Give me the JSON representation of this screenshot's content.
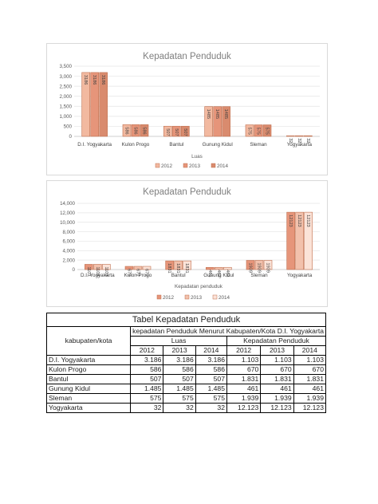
{
  "charts": [
    {
      "title": "Kepadatan Penduduk",
      "chart_data": {
        "type": "bar",
        "categories": [
          "D.I. Yogyakarta",
          "Kulon Progo",
          "Bantul",
          "Gunung Kidul",
          "Sleman",
          "Yogyakarta"
        ],
        "series": [
          {
            "name": "2012",
            "values": [
              3186,
              586,
              507,
              1485,
              575,
              32
            ],
            "labels": [
              "3186",
              "586",
              "507",
              "1485",
              "575",
              "32"
            ]
          },
          {
            "name": "2013",
            "values": [
              3186,
              586,
              507,
              1485,
              575,
              32
            ],
            "labels": [
              "3186",
              "586",
              "507",
              "1485",
              "575",
              "32"
            ]
          },
          {
            "name": "2014",
            "values": [
              3186,
              586,
              507,
              1485,
              575,
              32
            ],
            "labels": [
              "3186",
              "586",
              "507",
              "1485",
              "575",
              "32"
            ]
          }
        ],
        "yticks": [
          "0",
          "500",
          "1,000",
          "1,500",
          "2,000",
          "2,500",
          "3,000",
          "3,500"
        ],
        "ylim": [
          0,
          3500
        ],
        "xlabel": "Luas",
        "grid": true,
        "legend": "bottom",
        "colors": [
          "#f2b9a0",
          "#e6957a",
          "#d98b6e"
        ]
      }
    },
    {
      "title": "Kepadatan Penduduk",
      "chart_data": {
        "type": "bar",
        "categories": [
          "D.I. Yogyakarta",
          "Kulon Progo",
          "Bantul",
          "Gunung Kidul",
          "Sleman",
          "Yogyakarta"
        ],
        "series": [
          {
            "name": "2012",
            "values": [
              1103,
              670,
              1831,
              461,
              1939,
              12123
            ],
            "labels": [
              "1103",
              "670",
              "1831",
              "461",
              "1939",
              "12123"
            ]
          },
          {
            "name": "2013",
            "values": [
              1103,
              670,
              1831,
              461,
              1939,
              12123
            ],
            "labels": [
              "1103",
              "670",
              "1831",
              "461",
              "1939",
              "12123"
            ]
          },
          {
            "name": "2014",
            "values": [
              1103,
              670,
              1831,
              461,
              1939,
              12123
            ],
            "labels": [
              "1103",
              "670",
              "1831",
              "461",
              "1939",
              "12123"
            ]
          }
        ],
        "yticks": [
          "0",
          "2,000",
          "4,000",
          "6,000",
          "8,000",
          "10,000",
          "12,000",
          "14,000"
        ],
        "ylim": [
          0,
          14000
        ],
        "xlabel": "Kepadatan penduduk",
        "grid": true,
        "legend": "bottom",
        "colors": [
          "#e6957a",
          "#f2c1ac",
          "#fbe3d8"
        ]
      }
    }
  ],
  "table": {
    "title": "Tabel Kepadatan Penduduk",
    "row_header": "kabupaten/kota",
    "group_header": "kepadatan Penduduk Menurut Kabupaten/Kota D.I. Yogyakarta",
    "sub_headers": [
      "Luas",
      "Kepadatan Penduduk"
    ],
    "years": [
      "2012",
      "2013",
      "2014",
      "2012",
      "2013",
      "2014"
    ],
    "rows": [
      {
        "name": "D.I. Yogyakarta",
        "values": [
          "3.186",
          "3.186",
          "3.186",
          "1.103",
          "1.103",
          "1.103"
        ]
      },
      {
        "name": "Kulon Progo",
        "values": [
          "586",
          "586",
          "586",
          "670",
          "670",
          "670"
        ]
      },
      {
        "name": "Bantul",
        "values": [
          "507",
          "507",
          "507",
          "1.831",
          "1.831",
          "1.831"
        ]
      },
      {
        "name": "Gunung Kidul",
        "values": [
          "1.485",
          "1.485",
          "1.485",
          "461",
          "461",
          "461"
        ]
      },
      {
        "name": "Sleman",
        "values": [
          "575",
          "575",
          "575",
          "1.939",
          "1.939",
          "1.939"
        ]
      },
      {
        "name": "Yogyakarta",
        "values": [
          "32",
          "32",
          "32",
          "12.123",
          "12.123",
          "12.123"
        ]
      }
    ]
  }
}
